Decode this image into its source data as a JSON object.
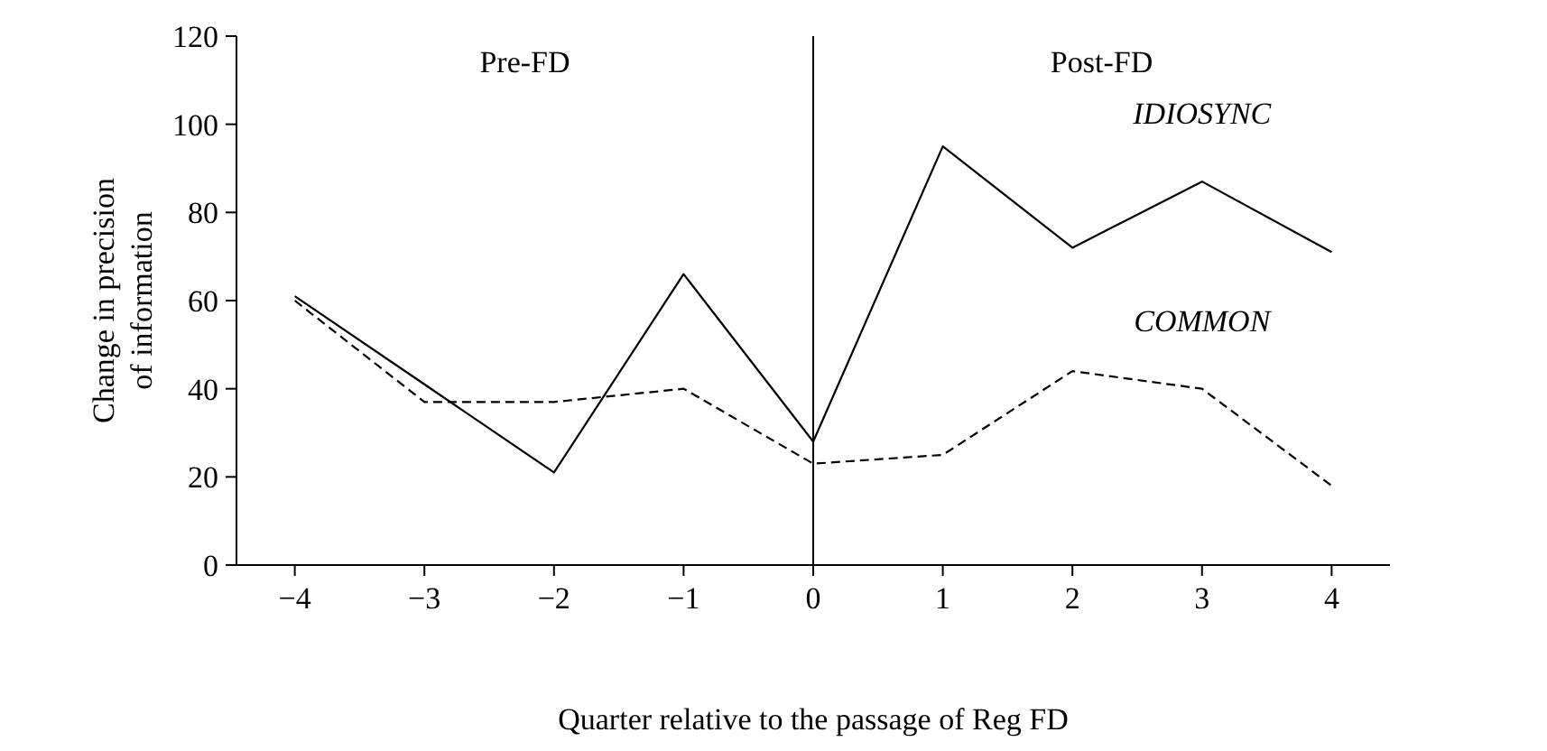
{
  "chart_data": {
    "type": "line",
    "xlabel": "Quarter relative to the passage of Reg FD",
    "ylabel": "Change in precision of information",
    "x": [
      -4,
      -3,
      -2,
      -1,
      0,
      1,
      2,
      3,
      4
    ],
    "series": [
      {
        "name": "IDIOSYNC",
        "color": "#000000",
        "line_style": "solid",
        "values": [
          61,
          41,
          21,
          66,
          28,
          95,
          72,
          87,
          71
        ]
      },
      {
        "name": "COMMON",
        "color": "#000000",
        "line_style": "dashed",
        "values": [
          60,
          37,
          37,
          40,
          23,
          25,
          44,
          40,
          18
        ]
      }
    ],
    "xlim": [
      -4.45,
      4.45
    ],
    "xticks": [
      {
        "value": -4,
        "label": "−4"
      },
      {
        "value": -3,
        "label": "−3"
      },
      {
        "value": -2,
        "label": "−2"
      },
      {
        "value": -1,
        "label": "−1"
      },
      0,
      1,
      2,
      3,
      4
    ],
    "ylim": [
      0,
      120
    ],
    "yticks": [
      0,
      20,
      40,
      60,
      80,
      100,
      120
    ],
    "ref_lines": [
      {
        "axis": "x",
        "value": 0,
        "color": "#000000"
      }
    ],
    "annotations": [
      "Pre-FD",
      "Post-FD"
    ],
    "grid": false,
    "marker": "none"
  }
}
